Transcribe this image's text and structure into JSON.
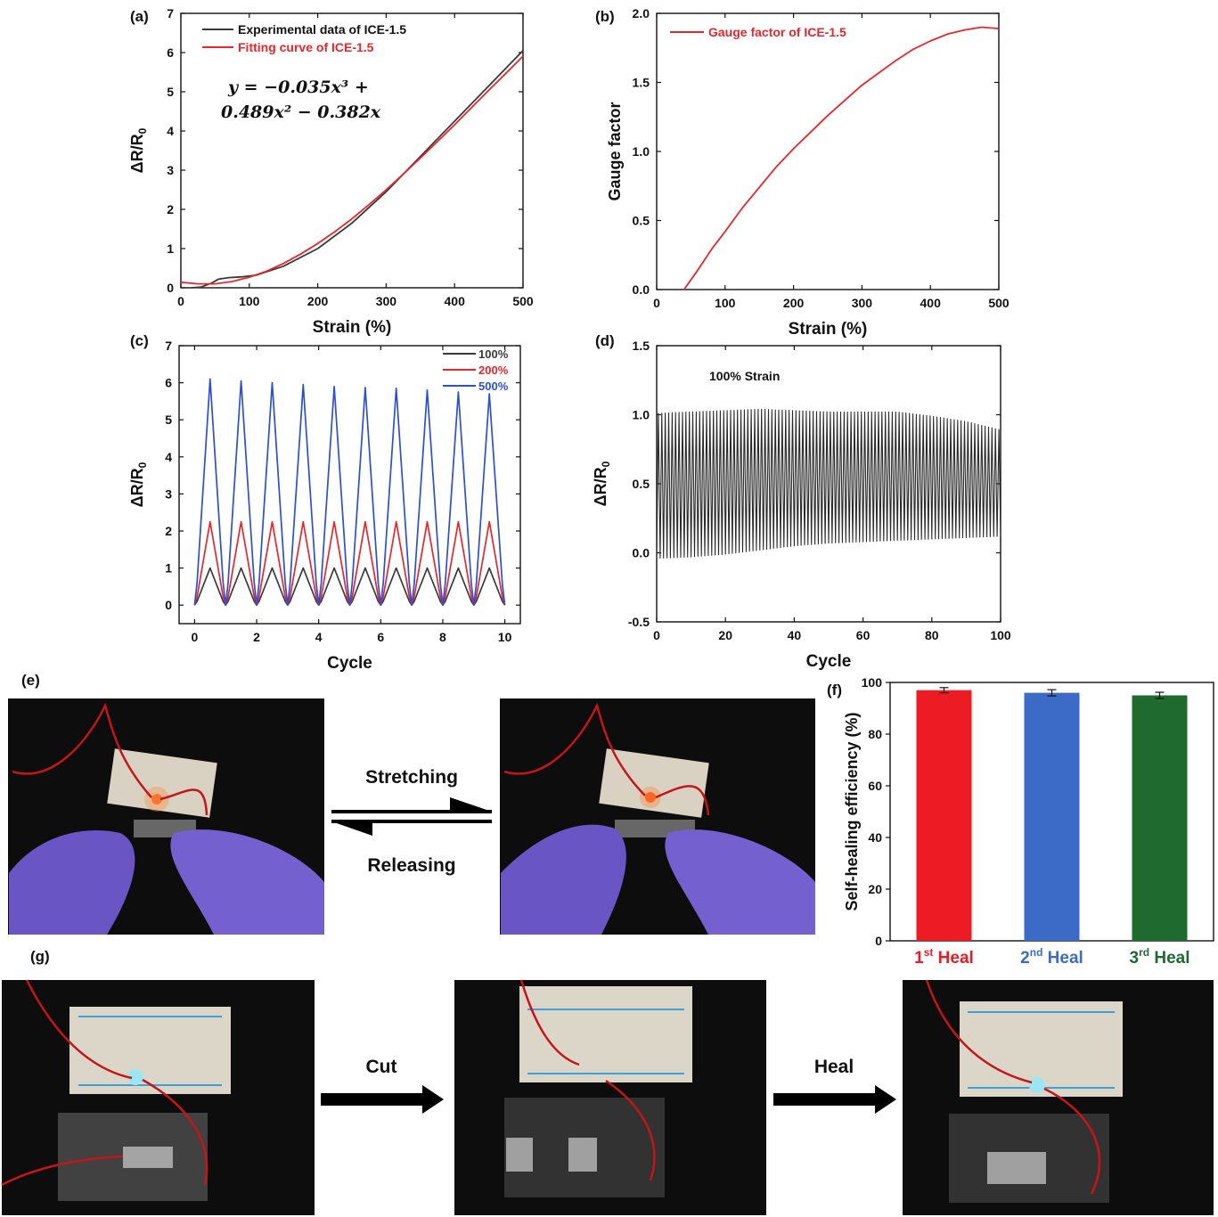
{
  "panel_labels": {
    "a": "(a)",
    "b": "(b)",
    "c": "(c)",
    "d": "(d)",
    "e": "(e)",
    "f": "(f)",
    "g": "(g)"
  },
  "equation": {
    "line1": "y = −0.035x³ +",
    "line2": "0.489x² − 0.382x"
  },
  "annotation_d": "100% Strain",
  "arrows": {
    "stretching": "Stretching",
    "releasing": "Releasing",
    "cut": "Cut",
    "heal": "Heal"
  },
  "colors": {
    "black": "#3a3a3a",
    "red": "#e8262c",
    "blue": "#2b4fd6",
    "bar_red": "#ed1c24",
    "bar_blue": "#3b6bc7",
    "bar_green": "#1f6b2f"
  },
  "chart_data": [
    {
      "id": "a",
      "type": "line",
      "xlabel": "Strain (%)",
      "ylabel": "ΔR/R₀",
      "xlim": [
        0,
        500
      ],
      "ylim": [
        0,
        7
      ],
      "xticks": [
        0,
        100,
        200,
        300,
        400,
        500
      ],
      "yticks": [
        0,
        1,
        2,
        3,
        4,
        5,
        6,
        7
      ],
      "legend": "top-left",
      "series": [
        {
          "name": "Experimental data of ICE-1.5",
          "color": "#3a3a3a",
          "x": [
            15,
            30,
            45,
            55,
            70,
            90,
            110,
            150,
            200,
            250,
            300,
            350,
            400,
            450,
            500
          ],
          "y": [
            0.0,
            0.02,
            0.12,
            0.22,
            0.26,
            0.28,
            0.32,
            0.55,
            1.0,
            1.65,
            2.45,
            3.35,
            4.25,
            5.15,
            6.05
          ]
        },
        {
          "name": "Fitting curve of ICE-1.5",
          "color": "#e8262c",
          "x": [
            0,
            25,
            50,
            75,
            100,
            125,
            150,
            175,
            200,
            225,
            250,
            275,
            300,
            325,
            350,
            375,
            400,
            425,
            450,
            475,
            500
          ],
          "y": [
            0.14,
            0.1,
            0.1,
            0.16,
            0.27,
            0.42,
            0.62,
            0.86,
            1.13,
            1.43,
            1.76,
            2.12,
            2.5,
            2.9,
            3.31,
            3.73,
            4.16,
            4.6,
            5.04,
            5.47,
            5.91
          ]
        }
      ]
    },
    {
      "id": "b",
      "type": "line",
      "xlabel": "Strain (%)",
      "ylabel": "Gauge factor",
      "xlim": [
        0,
        500
      ],
      "ylim": [
        0,
        2.0
      ],
      "xticks": [
        0,
        100,
        200,
        300,
        400,
        500
      ],
      "yticks": [
        0.0,
        0.5,
        1.0,
        1.5,
        2.0
      ],
      "legend": "top-left",
      "series": [
        {
          "name": "Gauge factor of ICE-1.5",
          "color": "#e8262c",
          "x": [
            40,
            60,
            80,
            100,
            125,
            150,
            175,
            200,
            225,
            250,
            275,
            300,
            325,
            350,
            375,
            400,
            425,
            450,
            475,
            500
          ],
          "y": [
            0.0,
            0.14,
            0.29,
            0.42,
            0.59,
            0.74,
            0.89,
            1.02,
            1.14,
            1.26,
            1.37,
            1.48,
            1.57,
            1.66,
            1.74,
            1.8,
            1.85,
            1.88,
            1.9,
            1.89
          ]
        }
      ]
    },
    {
      "id": "c",
      "type": "line",
      "xlabel": "Cycle",
      "ylabel": "ΔR/R₀",
      "xlim": [
        -0.5,
        10.5
      ],
      "ylim": [
        -0.5,
        7
      ],
      "xticks": [
        0,
        2,
        4,
        6,
        8,
        10
      ],
      "yticks": [
        0,
        1,
        2,
        3,
        4,
        5,
        6,
        7
      ],
      "legend": "top-right",
      "cycles": 10,
      "series": [
        {
          "name": "100%",
          "color": "#3a3a3a",
          "peaks": [
            1.0,
            1.0,
            1.0,
            1.0,
            1.0,
            1.0,
            1.0,
            1.0,
            1.0,
            1.0
          ]
        },
        {
          "name": "200%",
          "color": "#e8262c",
          "peaks": [
            2.25,
            2.25,
            2.25,
            2.25,
            2.25,
            2.25,
            2.25,
            2.25,
            2.25,
            2.25
          ]
        },
        {
          "name": "500%",
          "color": "#2b4fd6",
          "peaks": [
            6.1,
            6.05,
            6.0,
            5.95,
            5.9,
            5.87,
            5.85,
            5.8,
            5.75,
            5.7
          ]
        }
      ]
    },
    {
      "id": "d",
      "type": "line",
      "xlabel": "Cycle",
      "ylabel": "ΔR/R₀",
      "xlim": [
        0,
        100
      ],
      "ylim": [
        -0.5,
        1.5
      ],
      "xticks": [
        0,
        20,
        40,
        60,
        80,
        100
      ],
      "yticks": [
        -0.5,
        0.0,
        0.5,
        1.0,
        1.5
      ],
      "cycles": 100,
      "series": [
        {
          "name": "100% Strain",
          "color": "#2a2a2a",
          "envelope_x": [
            0,
            10,
            20,
            30,
            40,
            50,
            60,
            70,
            80,
            90,
            100
          ],
          "max": [
            1.01,
            1.02,
            1.03,
            1.04,
            1.03,
            1.02,
            1.02,
            1.02,
            0.99,
            0.95,
            0.89
          ],
          "min": [
            -0.04,
            -0.03,
            -0.01,
            0.02,
            0.05,
            0.07,
            0.08,
            0.09,
            0.1,
            0.11,
            0.12
          ]
        }
      ]
    },
    {
      "id": "f",
      "type": "bar",
      "xlabel": "",
      "ylabel": "Self-healing efficiency (%)",
      "ylim": [
        0,
        100
      ],
      "yticks": [
        0,
        20,
        40,
        60,
        80,
        100
      ],
      "categories": [
        {
          "num": "1",
          "sup": "st",
          "word": " Heal",
          "color": "#ed1c24"
        },
        {
          "num": "2",
          "sup": "nd",
          "word": " Heal",
          "color": "#3b6bc7"
        },
        {
          "num": "3",
          "sup": "rd",
          "word": " Heal",
          "color": "#1f6b2f"
        }
      ],
      "values": [
        97.0,
        96.0,
        95.0
      ],
      "errors": [
        1.0,
        1.2,
        1.2
      ]
    }
  ]
}
